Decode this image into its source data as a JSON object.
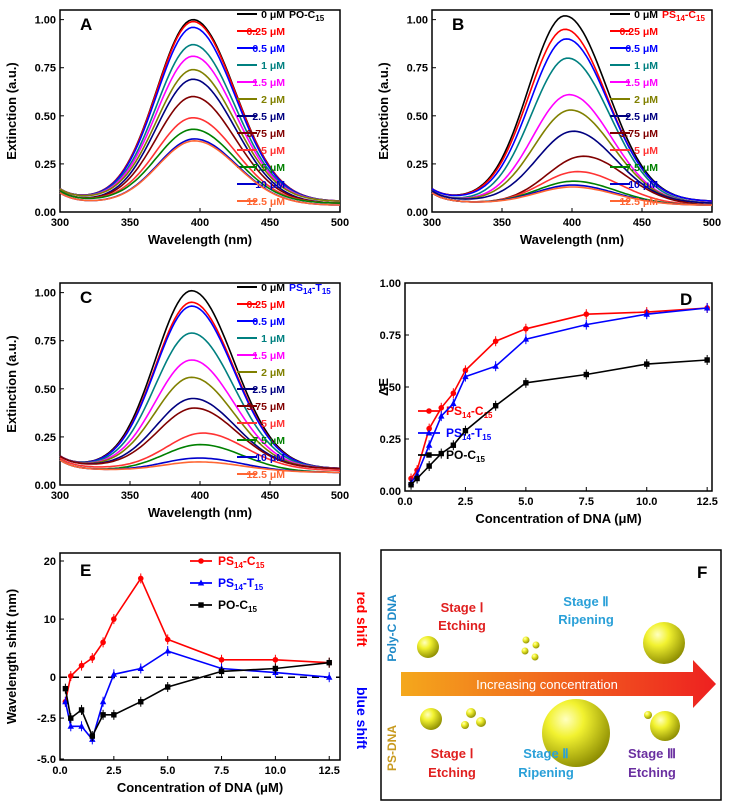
{
  "chart_data": [
    {
      "id": "A",
      "type": "line",
      "panel_label": "A",
      "xlabel": "Wavelength (nm)",
      "ylabel": "Extinction (a.u.)",
      "xlim": [
        300,
        500
      ],
      "ylim": [
        0,
        1.05
      ],
      "xticks": [
        "300",
        "350",
        "400",
        "450",
        "500"
      ],
      "yticks": [
        "0.00",
        "0.25",
        "0.50",
        "0.75",
        "1.00"
      ],
      "legend_title": "PO-C15",
      "legend_title_color": "#000000",
      "series": [
        {
          "name": "0 μM",
          "color": "#000000",
          "peak": 1.0,
          "peak_x": 395,
          "base": 0.07
        },
        {
          "name": "0.25 μM",
          "color": "#ff0000",
          "peak": 0.99,
          "peak_x": 395,
          "base": 0.07
        },
        {
          "name": "0.5 μM",
          "color": "#0000ff",
          "peak": 0.96,
          "peak_x": 395,
          "base": 0.07
        },
        {
          "name": "1 μM",
          "color": "#008080",
          "peak": 0.87,
          "peak_x": 395,
          "base": 0.07
        },
        {
          "name": "1.5 μM",
          "color": "#ff00ff",
          "peak": 0.81,
          "peak_x": 395,
          "base": 0.07
        },
        {
          "name": "2 μM",
          "color": "#808000",
          "peak": 0.74,
          "peak_x": 395,
          "base": 0.07
        },
        {
          "name": "2.5 μM",
          "color": "#000080",
          "peak": 0.69,
          "peak_x": 395,
          "base": 0.06
        },
        {
          "name": "3.75 μM",
          "color": "#800000",
          "peak": 0.6,
          "peak_x": 395,
          "base": 0.06
        },
        {
          "name": "5 μM",
          "color": "#ff3333",
          "peak": 0.49,
          "peak_x": 395,
          "base": 0.06
        },
        {
          "name": "7.5 μM",
          "color": "#008000",
          "peak": 0.43,
          "peak_x": 395,
          "base": 0.06
        },
        {
          "name": "10 μM",
          "color": "#0000cc",
          "peak": 0.38,
          "peak_x": 396,
          "base": 0.05
        },
        {
          "name": "12.5 μM",
          "color": "#ff6633",
          "peak": 0.37,
          "peak_x": 396,
          "base": 0.05
        }
      ]
    },
    {
      "id": "B",
      "type": "line",
      "panel_label": "B",
      "xlabel": "Wavelength (nm)",
      "ylabel": "Extinction (a.u.)",
      "xlim": [
        300,
        500
      ],
      "ylim": [
        0,
        1.05
      ],
      "xticks": [
        "300",
        "350",
        "400",
        "450",
        "500"
      ],
      "yticks": [
        "0.00",
        "0.25",
        "0.50",
        "0.75",
        "1.00"
      ],
      "legend_title": "PS14-C15",
      "legend_title_color": "#ff0000",
      "series": [
        {
          "name": "0 μM",
          "color": "#000000",
          "peak": 1.02,
          "peak_x": 395,
          "base": 0.07
        },
        {
          "name": "0.25 μM",
          "color": "#ff0000",
          "peak": 0.95,
          "peak_x": 395,
          "base": 0.07
        },
        {
          "name": "0.5 μM",
          "color": "#0000ff",
          "peak": 0.9,
          "peak_x": 396,
          "base": 0.07
        },
        {
          "name": "1 μM",
          "color": "#008080",
          "peak": 0.8,
          "peak_x": 397,
          "base": 0.06
        },
        {
          "name": "1.5 μM",
          "color": "#ff00ff",
          "peak": 0.61,
          "peak_x": 398,
          "base": 0.06
        },
        {
          "name": "2 μM",
          "color": "#808000",
          "peak": 0.53,
          "peak_x": 399,
          "base": 0.06
        },
        {
          "name": "2.5 μM",
          "color": "#000080",
          "peak": 0.42,
          "peak_x": 401,
          "base": 0.06
        },
        {
          "name": "3.75 μM",
          "color": "#800000",
          "peak": 0.29,
          "peak_x": 408,
          "base": 0.05
        },
        {
          "name": "5 μM",
          "color": "#ff3333",
          "peak": 0.21,
          "peak_x": 404,
          "base": 0.05
        },
        {
          "name": "7.5 μM",
          "color": "#008000",
          "peak": 0.16,
          "peak_x": 401,
          "base": 0.05
        },
        {
          "name": "10 μM",
          "color": "#0000cc",
          "peak": 0.14,
          "peak_x": 400,
          "base": 0.05
        },
        {
          "name": "12.5 μM",
          "color": "#ff6633",
          "peak": 0.13,
          "peak_x": 400,
          "base": 0.05
        }
      ]
    },
    {
      "id": "C",
      "type": "line",
      "panel_label": "C",
      "xlabel": "Wavelength (nm)",
      "ylabel": "Extinction (a.u.)",
      "xlim": [
        300,
        500
      ],
      "ylim": [
        0,
        1.05
      ],
      "xticks": [
        "300",
        "350",
        "400",
        "450",
        "500"
      ],
      "yticks": [
        "0.00",
        "0.25",
        "0.50",
        "0.75",
        "1.00"
      ],
      "legend_title": "PS14-T15",
      "legend_title_color": "#0000ff",
      "series": [
        {
          "name": "0 μM",
          "color": "#000000",
          "peak": 1.01,
          "peak_x": 394,
          "base": 0.1
        },
        {
          "name": "0.25 μM",
          "color": "#ff0000",
          "peak": 0.95,
          "peak_x": 394,
          "base": 0.1
        },
        {
          "name": "0.5 μM",
          "color": "#0000ff",
          "peak": 0.93,
          "peak_x": 394,
          "base": 0.1
        },
        {
          "name": "1 μM",
          "color": "#008080",
          "peak": 0.79,
          "peak_x": 394,
          "base": 0.1
        },
        {
          "name": "1.5 μM",
          "color": "#ff00ff",
          "peak": 0.65,
          "peak_x": 394,
          "base": 0.1
        },
        {
          "name": "2 μM",
          "color": "#808000",
          "peak": 0.56,
          "peak_x": 394,
          "base": 0.1
        },
        {
          "name": "2.5 μM",
          "color": "#000080",
          "peak": 0.45,
          "peak_x": 395,
          "base": 0.1
        },
        {
          "name": "3.75 μM",
          "color": "#800000",
          "peak": 0.4,
          "peak_x": 396,
          "base": 0.1
        },
        {
          "name": "5 μM",
          "color": "#ff3333",
          "peak": 0.27,
          "peak_x": 402,
          "base": 0.09
        },
        {
          "name": "7.5 μM",
          "color": "#008000",
          "peak": 0.21,
          "peak_x": 400,
          "base": 0.08
        },
        {
          "name": "10 μM",
          "color": "#0000cc",
          "peak": 0.14,
          "peak_x": 399,
          "base": 0.08
        },
        {
          "name": "12.5 μM",
          "color": "#ff6633",
          "peak": 0.12,
          "peak_x": 399,
          "base": 0.08
        }
      ]
    },
    {
      "id": "D",
      "type": "line",
      "panel_label": "D",
      "xlabel": "Concentration of DNA (μM)",
      "ylabel": "ΔE",
      "xlim": [
        0,
        12.7
      ],
      "ylim": [
        0,
        1.0
      ],
      "xticks": [
        "0.0",
        "2.5",
        "5.0",
        "7.5",
        "10.0",
        "12.5"
      ],
      "yticks": [
        "0.00",
        "0.25",
        "0.50",
        "0.75",
        "1.00"
      ],
      "x": [
        0.25,
        0.5,
        1,
        1.5,
        2,
        2.5,
        3.75,
        5,
        7.5,
        10,
        12.5
      ],
      "series": [
        {
          "name": "PS14-C15",
          "color": "#ff0000",
          "marker": "circle",
          "values": [
            0.06,
            0.1,
            0.3,
            0.4,
            0.47,
            0.58,
            0.72,
            0.78,
            0.85,
            0.86,
            0.88
          ]
        },
        {
          "name": "PS14-T15",
          "color": "#0000ff",
          "marker": "triangle",
          "values": [
            0.04,
            0.08,
            0.22,
            0.36,
            0.42,
            0.55,
            0.6,
            0.73,
            0.8,
            0.85,
            0.88
          ]
        },
        {
          "name": "PO-C15",
          "color": "#000000",
          "marker": "square",
          "values": [
            0.03,
            0.06,
            0.12,
            0.18,
            0.22,
            0.29,
            0.41,
            0.52,
            0.56,
            0.61,
            0.63
          ]
        }
      ],
      "legend": [
        "PS14-C15",
        "PS14-T15",
        "PO-C15"
      ]
    },
    {
      "id": "E",
      "type": "line",
      "panel_label": "E",
      "xlabel": "Concentration of DNA (μM)",
      "ylabel": "Wavelength shift (nm)",
      "xlim": [
        0,
        13
      ],
      "ylim": [
        -5,
        20
      ],
      "xticks": [
        "0.0",
        "2.5",
        "5.0",
        "7.5",
        "10.0",
        "12.5"
      ],
      "yticks": [
        "-5.0",
        "-2.5",
        "0",
        "10",
        "20"
      ],
      "x": [
        0.25,
        0.5,
        1,
        1.5,
        2,
        2.5,
        3.75,
        5,
        7.5,
        10,
        12.5
      ],
      "series": [
        {
          "name": "PS14-C15",
          "color": "#ff0000",
          "marker": "circle",
          "values": [
            -1.5,
            0.2,
            2,
            3.3,
            6,
            10,
            17,
            6.5,
            3,
            3,
            2.5
          ]
        },
        {
          "name": "PS14-T15",
          "color": "#0000ff",
          "marker": "triangle",
          "values": [
            -1.5,
            -3,
            -3,
            -3.8,
            -1.5,
            0.5,
            1.5,
            4.5,
            1.5,
            0.8,
            0.0
          ]
        },
        {
          "name": "PO-C15",
          "color": "#000000",
          "marker": "square",
          "values": [
            -0.7,
            -2.5,
            -2,
            -3.6,
            -2.3,
            -2.3,
            -1.5,
            -0.6,
            1,
            1.5,
            2.5
          ]
        }
      ],
      "legend": [
        "PS14-C15",
        "PS14-T15",
        "PO-C15"
      ],
      "annotations": {
        "red_shift": "red shift",
        "blue_shift": "blue shift"
      }
    }
  ],
  "schematic": {
    "panel_label": "F",
    "poly_c_label": "Poly-C DNA",
    "ps_label": "PS-DNA",
    "arrow_label": "Increasing concentration",
    "top_stages": [
      {
        "stage": "Stage Ⅰ",
        "action": "Etching",
        "color": "#e02020"
      },
      {
        "stage": "Stage Ⅱ",
        "action": "Ripening",
        "color": "#2aa0d8"
      }
    ],
    "bottom_stages": [
      {
        "stage": "Stage Ⅰ",
        "action": "Etching",
        "color": "#e02020"
      },
      {
        "stage": "Stage Ⅱ",
        "action": "Ripening",
        "color": "#2aa0d8"
      },
      {
        "stage": "Stage Ⅲ",
        "action": "Etching",
        "color": "#6a2fa0"
      }
    ]
  },
  "colors": {
    "poly_c": "#1e8ac8",
    "ps": "#c89a1e",
    "sphere": "#d9d900"
  }
}
